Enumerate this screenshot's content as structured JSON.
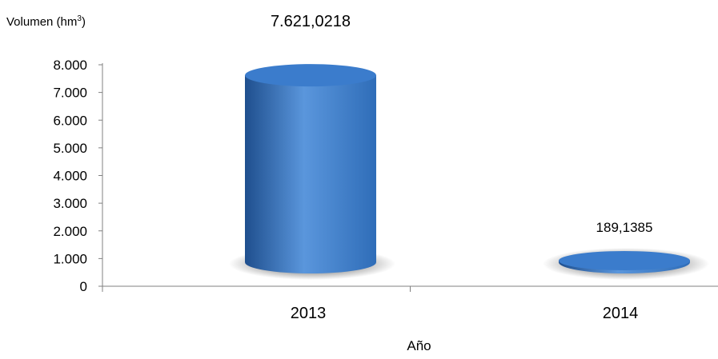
{
  "chart_data": {
    "type": "bar",
    "ylabel_text": "Volumen (hm",
    "ylabel_sup": "3",
    "ylabel_suffix": ")",
    "xlabel": "Año",
    "categories": [
      "2013",
      "2014"
    ],
    "values": [
      7621.0218,
      189.1385
    ],
    "data_labels": [
      "7.621,0218",
      "189,1385"
    ],
    "ylim": [
      0,
      8000
    ],
    "yticks": [
      0,
      1000,
      2000,
      3000,
      4000,
      5000,
      6000,
      7000,
      8000
    ],
    "ytick_labels": [
      "0",
      "1.000",
      "2.000",
      "3.000",
      "4.000",
      "5.000",
      "6.000",
      "7.000",
      "8.000"
    ],
    "grid": false,
    "colors": {
      "bar_main": "#2f6db8",
      "bar_light": "#5a96dc",
      "bar_dark": "#1f4f8e",
      "top_face": "#3b7ccc",
      "axis": "#808080",
      "shadow": "#9e9e9e"
    }
  }
}
